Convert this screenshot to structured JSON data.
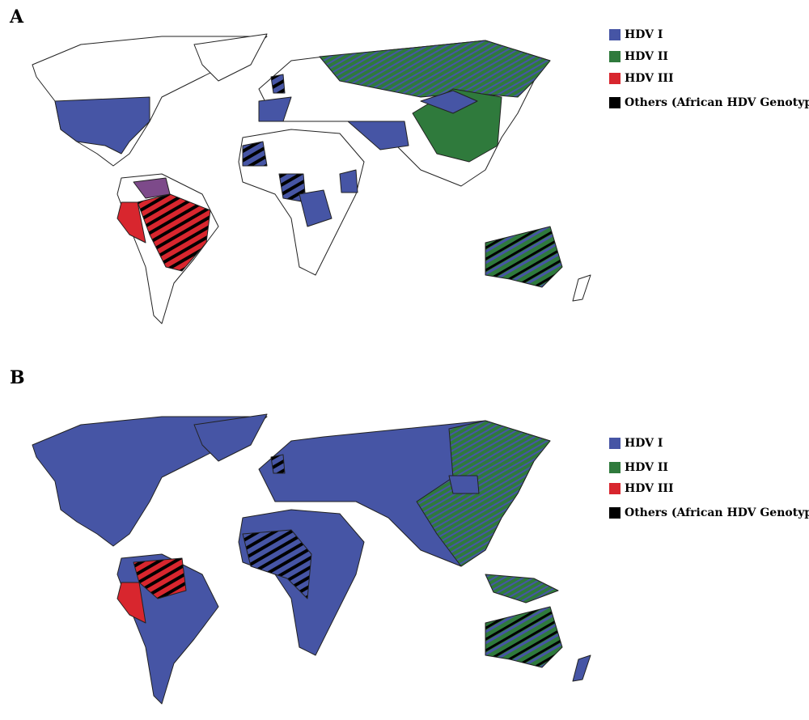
{
  "panels": [
    {
      "label": "A",
      "legend": [
        {
          "name": "HDV I",
          "color": "#4655a5"
        },
        {
          "name": "HDV II",
          "color": "#2f7a3c"
        },
        {
          "name": "HDV III",
          "color": "#d8262e"
        },
        {
          "name": "Others (African HDV Genotypes)",
          "color": "#000000"
        }
      ]
    },
    {
      "label": "B",
      "legend": [
        {
          "name": "HDV I",
          "color": "#4655a5"
        },
        {
          "name": "HDV II",
          "color": "#2f7a3c"
        },
        {
          "name": "HDV III",
          "color": "#d8262e"
        },
        {
          "name": "Others (African HDV Genotypes)",
          "color": "#000000"
        }
      ]
    }
  ]
}
